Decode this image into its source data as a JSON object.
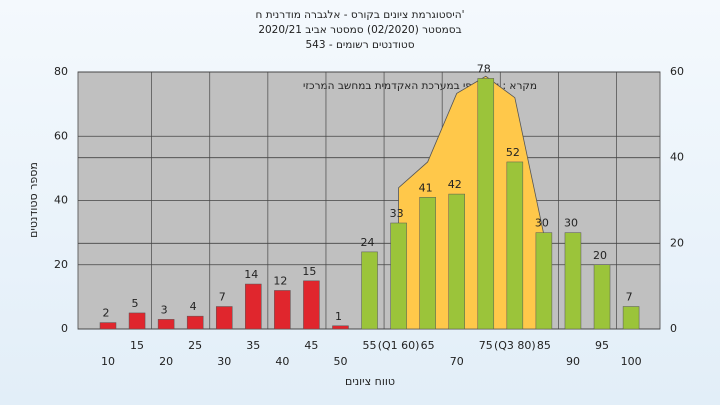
{
  "chart_data": {
    "type": "bar",
    "title": [
      "היסטוגרמת ציונים בקורס - אלגברה מודרנית ח'",
      "בסמסטר (02/2020) סמסטר אביב 2020/21",
      "543 - סטודנטים רשומים"
    ],
    "annotation": "מקרא : ציון סופי במערכת האקדמית במחשב המרכזי",
    "y_label": "מספר סטודנטים",
    "x_label": "טווח ציונים",
    "categories": [
      "10",
      "15",
      "20",
      "25",
      "30",
      "35",
      "40",
      "45",
      "50",
      "55",
      "(Q1 60)",
      "65",
      "70",
      "75",
      "(Q3 80)",
      "85",
      "90",
      "95",
      "100"
    ],
    "values": [
      2,
      5,
      3,
      4,
      7,
      14,
      12,
      15,
      1,
      24,
      33,
      41,
      42,
      78,
      52,
      30,
      30,
      20,
      7
    ],
    "colors": [
      "#e0262d",
      "#e0262d",
      "#e0262d",
      "#e0262d",
      "#e0262d",
      "#e0262d",
      "#e0262d",
      "#e0262d",
      "#e0262d",
      "#9bc43a",
      "#9bc43a",
      "#9bc43a",
      "#9bc43a",
      "#9bc43a",
      "#9bc43a",
      "#9bc43a",
      "#9bc43a",
      "#9bc43a",
      "#9bc43a"
    ],
    "area": {
      "axis": "y2",
      "color": "#ffc84a",
      "values": [
        null,
        null,
        null,
        null,
        null,
        null,
        null,
        null,
        null,
        null,
        33,
        39,
        55,
        59,
        54,
        22,
        null,
        null,
        null
      ]
    },
    "ylim": [
      0,
      80
    ],
    "yticks": [
      0,
      20,
      40,
      60,
      80
    ],
    "y2lim": [
      0,
      60
    ],
    "y2ticks": [
      0,
      20,
      40,
      60
    ],
    "grid": true
  }
}
